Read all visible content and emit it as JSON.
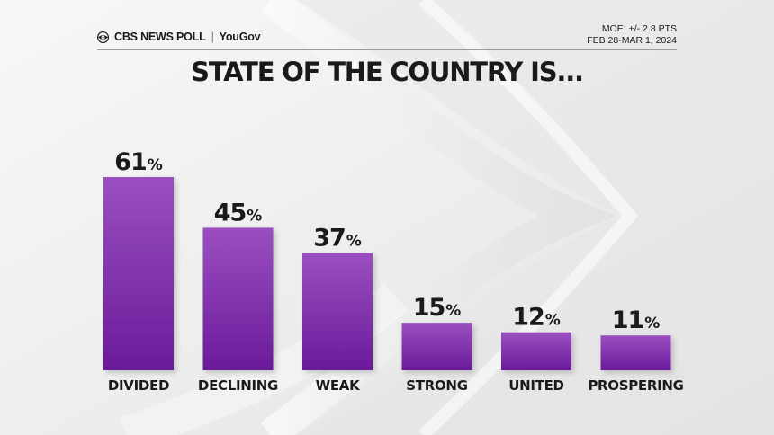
{
  "header": {
    "brand": "CBS NEWS POLL",
    "separator": "|",
    "partner": "YouGov",
    "moe": "MOE: +/- 2.8 PTS",
    "dates": "FEB 28-MAR 1, 2024"
  },
  "colors": {
    "bar_top": "#9a4fbf",
    "bar_bottom": "#6a1b9a",
    "background": "#f1f1f1"
  },
  "chart_data": {
    "type": "bar",
    "title": "STATE OF THE COUNTRY IS...",
    "categories": [
      "DIVIDED",
      "DECLINING",
      "WEAK",
      "STRONG",
      "UNITED",
      "PROSPERING"
    ],
    "values": [
      61,
      45,
      37,
      15,
      12,
      11
    ],
    "value_suffix": "%",
    "ylim": [
      0,
      61
    ],
    "xlabel": "",
    "ylabel": "",
    "grid": false,
    "legend": "none"
  }
}
